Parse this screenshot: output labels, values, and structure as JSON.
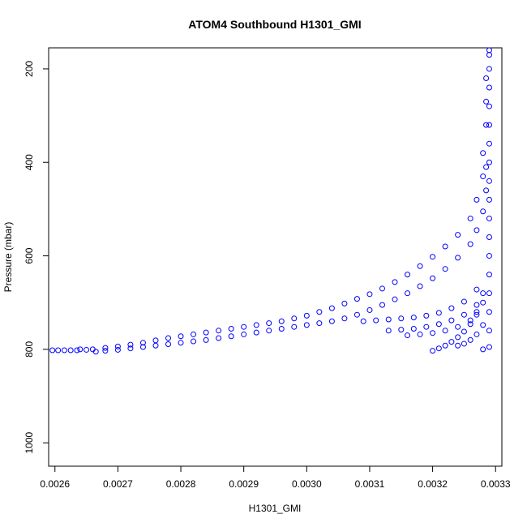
{
  "chart_data": {
    "type": "scatter",
    "title": "ATOM4 Southbound H1301_GMI",
    "xlabel": "H1301_GMI",
    "ylabel": "Pressure (mbar)",
    "xlim": [
      0.00259,
      0.00331
    ],
    "ylim": [
      1050,
      155
    ],
    "y_reversed": true,
    "x_ticks": [
      0.0026,
      0.0027,
      0.0028,
      0.0029,
      0.003,
      0.0031,
      0.0032,
      0.0033
    ],
    "x_tick_labels": [
      "0.0026",
      "0.0027",
      "0.0028",
      "0.0029",
      "0.0030",
      "0.0031",
      "0.0032",
      "0.0033"
    ],
    "y_ticks": [
      200,
      400,
      600,
      800,
      1000
    ],
    "y_tick_labels": [
      "200",
      "400",
      "600",
      "800",
      "1000"
    ],
    "marker": "open-circle",
    "point_color": "#0000ff",
    "grid": false,
    "series": [
      {
        "points": [
          [
            0.002596,
            802
          ],
          [
            0.002605,
            802
          ],
          [
            0.002615,
            802
          ],
          [
            0.002625,
            802
          ],
          [
            0.002635,
            802
          ],
          [
            0.00264,
            800
          ],
          [
            0.00265,
            801
          ],
          [
            0.00266,
            800
          ],
          [
            0.00268,
            797
          ],
          [
            0.0027,
            794
          ],
          [
            0.00272,
            790
          ],
          [
            0.00274,
            786
          ],
          [
            0.00276,
            781
          ],
          [
            0.00278,
            776
          ],
          [
            0.0028,
            772
          ],
          [
            0.00282,
            768
          ],
          [
            0.00284,
            764
          ],
          [
            0.00286,
            760
          ],
          [
            0.00288,
            756
          ],
          [
            0.0029,
            752
          ],
          [
            0.00292,
            748
          ],
          [
            0.00294,
            744
          ],
          [
            0.00296,
            740
          ],
          [
            0.00298,
            734
          ],
          [
            0.003,
            728
          ],
          [
            0.00302,
            720
          ],
          [
            0.00304,
            712
          ],
          [
            0.00306,
            702
          ],
          [
            0.00308,
            692
          ],
          [
            0.0031,
            682
          ],
          [
            0.00312,
            670
          ],
          [
            0.00314,
            656
          ],
          [
            0.00316,
            640
          ],
          [
            0.00318,
            622
          ],
          [
            0.0032,
            602
          ],
          [
            0.00322,
            580
          ],
          [
            0.00324,
            555
          ],
          [
            0.00326,
            520
          ],
          [
            0.00327,
            480
          ],
          [
            0.00328,
            430
          ],
          [
            0.00328,
            380
          ],
          [
            0.003285,
            320
          ],
          [
            0.003285,
            270
          ],
          [
            0.003285,
            220
          ],
          [
            0.00329,
            170
          ],
          [
            0.002665,
            805
          ],
          [
            0.00268,
            803
          ],
          [
            0.0027,
            801
          ],
          [
            0.00272,
            798
          ],
          [
            0.00274,
            795
          ],
          [
            0.00276,
            792
          ],
          [
            0.00278,
            789
          ],
          [
            0.0028,
            786
          ],
          [
            0.00282,
            783
          ],
          [
            0.00284,
            780
          ],
          [
            0.00286,
            776
          ],
          [
            0.00288,
            772
          ],
          [
            0.0029,
            768
          ],
          [
            0.00292,
            764
          ],
          [
            0.00294,
            760
          ],
          [
            0.00296,
            756
          ],
          [
            0.00298,
            752
          ],
          [
            0.003,
            748
          ],
          [
            0.00302,
            744
          ],
          [
            0.00304,
            740
          ],
          [
            0.00306,
            734
          ],
          [
            0.00308,
            726
          ],
          [
            0.0031,
            716
          ],
          [
            0.00312,
            705
          ],
          [
            0.00314,
            693
          ],
          [
            0.00316,
            680
          ],
          [
            0.00318,
            665
          ],
          [
            0.0032,
            648
          ],
          [
            0.00322,
            628
          ],
          [
            0.00324,
            604
          ],
          [
            0.00326,
            575
          ],
          [
            0.00327,
            545
          ],
          [
            0.00328,
            505
          ],
          [
            0.003285,
            460
          ],
          [
            0.003285,
            410
          ],
          [
            0.00309,
            740
          ],
          [
            0.00311,
            738
          ],
          [
            0.00313,
            736
          ],
          [
            0.00315,
            734
          ],
          [
            0.00317,
            732
          ],
          [
            0.00319,
            728
          ],
          [
            0.00321,
            722
          ],
          [
            0.00323,
            712
          ],
          [
            0.00325,
            698
          ],
          [
            0.00327,
            672
          ],
          [
            0.00313,
            760
          ],
          [
            0.00315,
            758
          ],
          [
            0.00317,
            756
          ],
          [
            0.00319,
            752
          ],
          [
            0.00321,
            746
          ],
          [
            0.00323,
            738
          ],
          [
            0.00325,
            726
          ],
          [
            0.00327,
            705
          ],
          [
            0.00328,
            680
          ],
          [
            0.00316,
            770
          ],
          [
            0.00318,
            768
          ],
          [
            0.0032,
            765
          ],
          [
            0.00322,
            760
          ],
          [
            0.00324,
            752
          ],
          [
            0.00326,
            738
          ],
          [
            0.00327,
            720
          ],
          [
            0.0032,
            803
          ],
          [
            0.00321,
            798
          ],
          [
            0.00322,
            792
          ],
          [
            0.00323,
            784
          ],
          [
            0.00324,
            774
          ],
          [
            0.00325,
            762
          ],
          [
            0.00326,
            746
          ],
          [
            0.00327,
            726
          ],
          [
            0.00328,
            700
          ],
          [
            0.00324,
            792
          ],
          [
            0.00325,
            788
          ],
          [
            0.00326,
            780
          ],
          [
            0.00327,
            768
          ],
          [
            0.00328,
            748
          ],
          [
            0.00328,
            800
          ],
          [
            0.00329,
            795
          ],
          [
            0.00329,
            760
          ],
          [
            0.00329,
            720
          ],
          [
            0.00329,
            680
          ],
          [
            0.00329,
            640
          ],
          [
            0.00329,
            600
          ],
          [
            0.00329,
            560
          ],
          [
            0.00329,
            520
          ],
          [
            0.00329,
            480
          ],
          [
            0.00329,
            440
          ],
          [
            0.00329,
            400
          ],
          [
            0.00329,
            360
          ],
          [
            0.00329,
            320
          ],
          [
            0.00329,
            280
          ],
          [
            0.00329,
            240
          ],
          [
            0.00329,
            200
          ],
          [
            0.00329,
            160
          ]
        ]
      }
    ]
  }
}
